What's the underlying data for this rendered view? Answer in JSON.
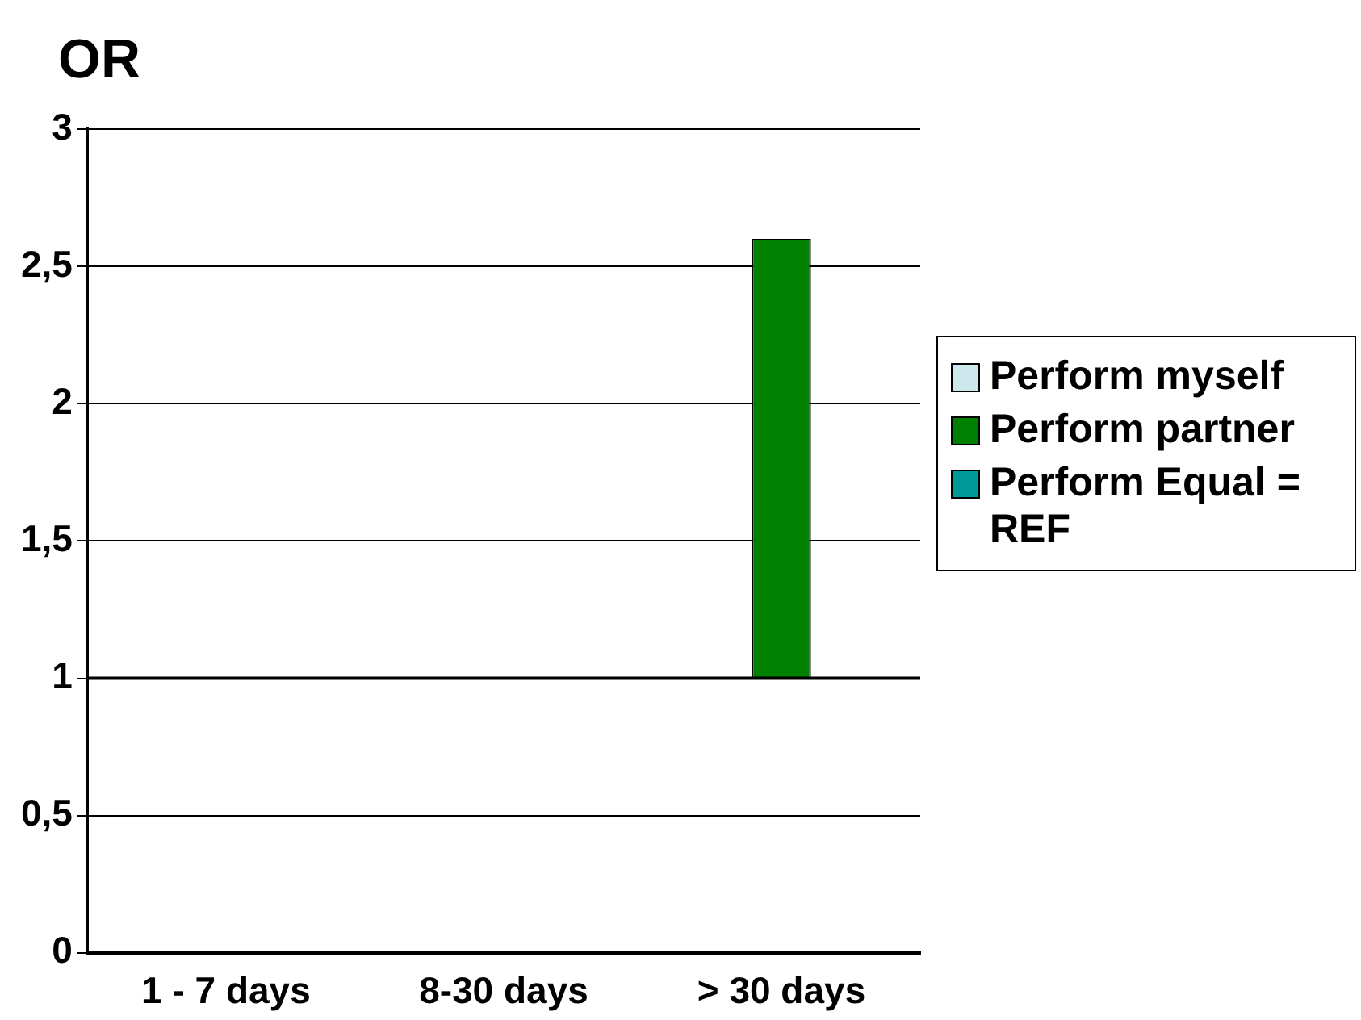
{
  "chart_data": {
    "type": "bar",
    "title": "OR",
    "categories": [
      "1 - 7 days",
      "8-30 days",
      "> 30 days"
    ],
    "series": [
      {
        "name": "Perform myself",
        "color": "#cce8ec",
        "values": [
          null,
          null,
          null
        ]
      },
      {
        "name": "Perform partner",
        "color": "#008000",
        "values": [
          null,
          null,
          1.6
        ],
        "base": [
          null,
          null,
          1
        ]
      },
      {
        "name": "Perform Equal = REF",
        "color": "#009999",
        "values": [
          null,
          null,
          null
        ]
      }
    ],
    "ylim": [
      0,
      3
    ],
    "yticks": [
      0,
      {
        "value": 0.5,
        "label": "0,5"
      },
      1,
      {
        "value": 1.5,
        "label": "1,5"
      },
      2,
      {
        "value": 2.5,
        "label": "2,5"
      },
      3
    ],
    "ref_lines": [
      {
        "axis": "y",
        "value": 1,
        "color": "#000000"
      }
    ],
    "grid": "y",
    "legend": "right"
  }
}
